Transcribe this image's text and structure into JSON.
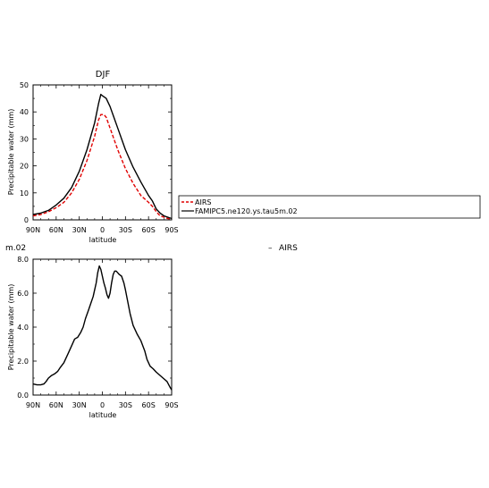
{
  "chart_data": [
    {
      "type": "line",
      "title": "DJF",
      "xlabel": "latitude",
      "ylabel": "Precipitable water (mm)",
      "xlim": [
        90,
        -90
      ],
      "ylim": [
        0,
        50
      ],
      "x_ticks": [
        90,
        60,
        30,
        0,
        -30,
        -60,
        -90
      ],
      "x_tick_labels": [
        "90N",
        "60N",
        "30N",
        "0",
        "30S",
        "60S",
        "90S"
      ],
      "y_ticks": [
        0,
        10,
        20,
        30,
        40,
        50
      ],
      "y_tick_labels": [
        "0",
        "10",
        "20",
        "30",
        "40",
        "50"
      ],
      "grid": false,
      "legend_placement": "outside-right",
      "series": [
        {
          "name": "AIRS",
          "color": "#e00000",
          "dash": "dashed",
          "x": [
            90,
            80,
            70,
            60,
            50,
            40,
            30,
            20,
            10,
            5,
            2,
            -2,
            -5,
            -10,
            -20,
            -30,
            -40,
            -50,
            -60,
            -65,
            -70,
            -75,
            -80,
            -85,
            -90
          ],
          "y": [
            1.5,
            2,
            3,
            4.5,
            6.5,
            10,
            15,
            22,
            31,
            37,
            39,
            39,
            38,
            34,
            26,
            19,
            13.5,
            9,
            6.5,
            5,
            3,
            1.5,
            1,
            0.5,
            0.3
          ]
        },
        {
          "name": "FAMIPC5.ne120.ys.tau5m.02",
          "color": "#000000",
          "dash": "solid",
          "x": [
            90,
            80,
            70,
            60,
            50,
            40,
            30,
            20,
            10,
            5,
            2,
            0,
            -5,
            -10,
            -20,
            -30,
            -40,
            -50,
            -60,
            -65,
            -70,
            -75,
            -80,
            -85,
            -90
          ],
          "y": [
            2,
            2.5,
            3.5,
            5.5,
            8,
            12,
            18,
            26,
            36,
            43,
            46.5,
            46,
            45,
            42,
            34,
            26,
            19.5,
            14,
            9,
            7,
            4,
            2.5,
            1.5,
            1,
            0.5
          ]
        }
      ]
    },
    {
      "type": "line",
      "title": "m.02",
      "xlabel": "latitude",
      "ylabel": "Precipitable water (mm)",
      "xlim": [
        90,
        -90
      ],
      "ylim": [
        0,
        8
      ],
      "x_ticks": [
        90,
        60,
        30,
        0,
        -30,
        -60,
        -90
      ],
      "x_tick_labels": [
        "90N",
        "60N",
        "30N",
        "0",
        "30S",
        "60S",
        "90S"
      ],
      "y_ticks": [
        0,
        2,
        4,
        6,
        8
      ],
      "y_tick_labels": [
        "0.0",
        "2.0",
        "4.0",
        "6.0",
        "8.0"
      ],
      "grid": false,
      "legend_placement": "top-right",
      "series": [
        {
          "name": "AIRS",
          "color": "#000000",
          "dash": "solid",
          "x": [
            90,
            85,
            80,
            76,
            73,
            70,
            66,
            62,
            58,
            55,
            50,
            45,
            40,
            36,
            32,
            28,
            25,
            22,
            18,
            15,
            12,
            10,
            8,
            6,
            4,
            2,
            0,
            -2,
            -4,
            -6,
            -8,
            -10,
            -12,
            -14,
            -16,
            -18,
            -20,
            -22,
            -25,
            -28,
            -30,
            -33,
            -36,
            -40,
            -45,
            -50,
            -55,
            -58,
            -62,
            -66,
            -70,
            -75,
            -80,
            -84,
            -88,
            -90
          ],
          "y": [
            0.65,
            0.6,
            0.6,
            0.65,
            0.8,
            1.0,
            1.15,
            1.25,
            1.4,
            1.6,
            1.9,
            2.4,
            2.9,
            3.3,
            3.4,
            3.7,
            4.0,
            4.5,
            5.0,
            5.4,
            5.8,
            6.2,
            6.6,
            7.2,
            7.6,
            7.4,
            7.0,
            6.6,
            6.3,
            5.9,
            5.7,
            6.0,
            6.6,
            7.1,
            7.3,
            7.3,
            7.2,
            7.1,
            7.0,
            6.6,
            6.2,
            5.5,
            4.8,
            4.1,
            3.6,
            3.2,
            2.6,
            2.1,
            1.7,
            1.55,
            1.35,
            1.15,
            0.95,
            0.8,
            0.45,
            0.3
          ]
        }
      ]
    }
  ],
  "legend_items": [
    "AIRS",
    "FAMIPC5.ne120.ys.tau5m.02"
  ],
  "floating_legend_item": "AIRS",
  "floating_legend_symbol": "–"
}
